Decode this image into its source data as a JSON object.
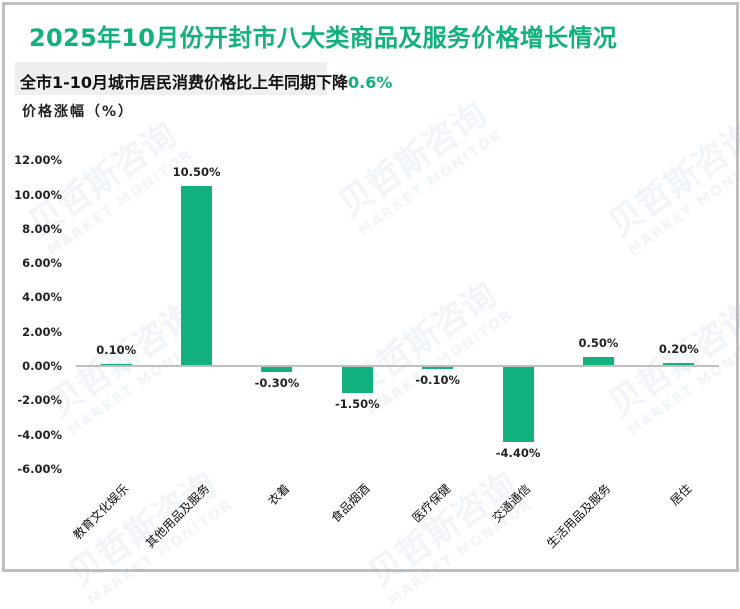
{
  "header": {
    "title": "2025年10月份开封市八大类商品及服务价格增长情况",
    "subtitle_prefix": "全市1-10月城市居民消费价格比上年同期下降",
    "subtitle_highlight": "0.6%",
    "y_axis_title": "价格涨幅（%）"
  },
  "colors": {
    "accent": "#12b07f",
    "bar": "#12b07f",
    "axis": "#bfbfbf",
    "subtitle_bg": "#efefef"
  },
  "watermark": {
    "cn": "贝哲斯咨询",
    "en": "MARKET MONITOR"
  },
  "axis": {
    "ticks": [
      "12.00%",
      "10.00%",
      "8.00%",
      "6.00%",
      "4.00%",
      "2.00%",
      "0.00%",
      "-2.00%",
      "-4.00%",
      "-6.00%"
    ]
  },
  "bars": [
    {
      "category": "教育文化娱乐",
      "value": 0.1,
      "label": "0.10%"
    },
    {
      "category": "其他用品及服务",
      "value": 10.5,
      "label": "10.50%"
    },
    {
      "category": "衣着",
      "value": -0.3,
      "label": "-0.30%"
    },
    {
      "category": "食品烟酒",
      "value": -1.5,
      "label": "-1.50%"
    },
    {
      "category": "医疗保健",
      "value": -0.1,
      "label": "-0.10%"
    },
    {
      "category": "交通通信",
      "value": -4.4,
      "label": "-4.40%"
    },
    {
      "category": "生活用品及服务",
      "value": 0.5,
      "label": "0.50%"
    },
    {
      "category": "居住",
      "value": 0.2,
      "label": "0.20%"
    }
  ],
  "chart_data": {
    "type": "bar",
    "title": "2025年10月份开封市八大类商品及服务价格增长情况",
    "subtitle": "全市1-10月城市居民消费价格比上年同期下降0.6%",
    "xlabel": "",
    "ylabel": "价格涨幅（%）",
    "categories": [
      "教育文化娱乐",
      "其他用品及服务",
      "衣着",
      "食品烟酒",
      "医疗保健",
      "交通通信",
      "生活用品及服务",
      "居住"
    ],
    "values": [
      0.1,
      10.5,
      -0.3,
      -1.5,
      -0.1,
      -4.4,
      0.5,
      0.2
    ],
    "data_labels": [
      "0.10%",
      "10.50%",
      "-0.30%",
      "-1.50%",
      "-0.10%",
      "-4.40%",
      "0.50%",
      "0.20%"
    ],
    "ylim": [
      -6,
      12
    ],
    "yticks": [
      12,
      10,
      8,
      6,
      4,
      2,
      0,
      -2,
      -4,
      -6
    ],
    "grid": false,
    "legend": null
  }
}
